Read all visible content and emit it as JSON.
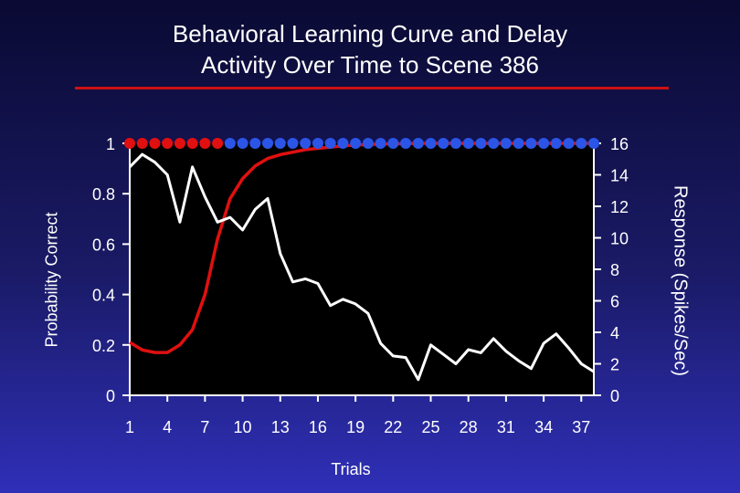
{
  "chart_data": {
    "type": "line",
    "title": "Behavioral Learning Curve and Delay Activity Over Time to Scene 386",
    "title_lines": [
      "Behavioral Learning Curve and Delay",
      "Activity Over Time to Scene 386"
    ],
    "xlabel": "Trials",
    "ylabel_left": "Probability Correct",
    "ylabel_right": "Response (Spikes/Sec)",
    "x_ticks": [
      "1",
      "4",
      "7",
      "10",
      "13",
      "16",
      "19",
      "22",
      "25",
      "28",
      "31",
      "34",
      "37"
    ],
    "y_left_ticks": [
      "0",
      "0.2",
      "0.4",
      "0.6",
      "0.8",
      "1"
    ],
    "y_right_ticks": [
      "0",
      "2",
      "4",
      "6",
      "8",
      "10",
      "12",
      "14",
      "16"
    ],
    "xlim": [
      1,
      38
    ],
    "ylim_left": [
      0,
      1
    ],
    "ylim_right": [
      0,
      16
    ],
    "grid": false,
    "plot_background": "#000000",
    "series": [
      {
        "axis": "left",
        "color": "#e01010",
        "values": [
          0.21,
          0.18,
          0.17,
          0.17,
          0.2,
          0.26,
          0.4,
          0.62,
          0.78,
          0.86,
          0.91,
          0.94,
          0.955,
          0.965,
          0.975,
          0.98,
          0.985,
          0.99,
          0.993,
          0.995,
          0.997,
          0.998,
          0.999,
          1.0,
          1.0,
          1.0,
          1.0,
          1.0,
          1.0,
          1.0,
          1.0,
          1.0,
          1.0,
          1.0,
          1.0,
          1.0,
          1.0,
          1.0
        ]
      },
      {
        "axis": "right",
        "color": "#ffffff",
        "values": [
          14.5,
          15.3,
          14.8,
          14.0,
          11.0,
          14.5,
          12.6,
          11.0,
          11.3,
          10.5,
          11.8,
          12.5,
          9.0,
          7.2,
          7.4,
          7.1,
          5.7,
          6.1,
          5.8,
          5.2,
          3.3,
          2.5,
          2.4,
          1.0,
          3.2,
          2.6,
          2.0,
          2.9,
          2.7,
          3.6,
          2.8,
          2.2,
          1.7,
          3.3,
          3.9,
          3.0,
          2.0,
          1.5
        ]
      }
    ],
    "trial_markers": {
      "axis": "left",
      "y": 1,
      "x": [
        1,
        2,
        3,
        4,
        5,
        6,
        7,
        8,
        9,
        10,
        11,
        12,
        13,
        14,
        15,
        16,
        17,
        18,
        19,
        20,
        21,
        22,
        23,
        24,
        25,
        26,
        27,
        28,
        29,
        30,
        31,
        32,
        33,
        34,
        35,
        36,
        37,
        38
      ],
      "colors": [
        "#e01010",
        "#e01010",
        "#e01010",
        "#e01010",
        "#e01010",
        "#e01010",
        "#e01010",
        "#e01010",
        "#2b55e6",
        "#2b55e6",
        "#2b55e6",
        "#2b55e6",
        "#2b55e6",
        "#2b55e6",
        "#2b55e6",
        "#2b55e6",
        "#2b55e6",
        "#2b55e6",
        "#2b55e6",
        "#2b55e6",
        "#2b55e6",
        "#2b55e6",
        "#2b55e6",
        "#2b55e6",
        "#2b55e6",
        "#2b55e6",
        "#2b55e6",
        "#2b55e6",
        "#2b55e6",
        "#2b55e6",
        "#2b55e6",
        "#2b55e6",
        "#2b55e6",
        "#2b55e6",
        "#2b55e6",
        "#2b55e6",
        "#2b55e6",
        "#2b55e6"
      ]
    },
    "colors": {
      "title_rule": "#cc1111",
      "axis": "#ffffff"
    }
  }
}
